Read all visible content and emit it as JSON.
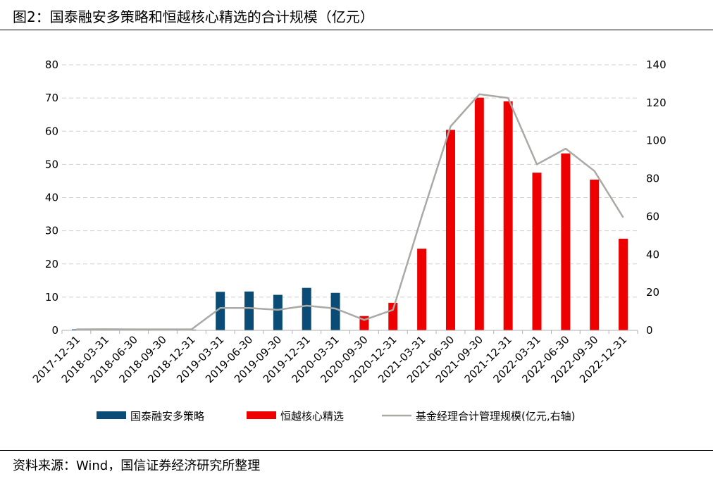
{
  "title": "图2：国泰融安多策略和恒越核心精选的合计规模（亿元）",
  "source": "资料来源：Wind，国信证券经济研究所整理",
  "colors": {
    "series1": "#0b4c77",
    "series2": "#ee0000",
    "series3": "#aaa9a5",
    "grid": "#d0d0d0"
  },
  "chart_data": {
    "type": "bar",
    "title": "图2：国泰融安多策略和恒越核心精选的合计规模（亿元）",
    "categories": [
      "2017-12-31",
      "2018-03-31",
      "2018-06-30",
      "2018-09-30",
      "2018-12-31",
      "2019-03-31",
      "2019-06-30",
      "2019-09-30",
      "2019-12-31",
      "2020-03-31",
      "2020-09-30",
      "2020-12-31",
      "2021-03-31",
      "2021-06-30",
      "2021-09-30",
      "2021-12-31",
      "2022-03-31",
      "2022-06-30",
      "2022-09-30",
      "2022-12-31"
    ],
    "y_left": {
      "lim": [
        0,
        80
      ],
      "ticks": [
        0,
        10,
        20,
        30,
        40,
        50,
        60,
        70,
        80
      ]
    },
    "y_right": {
      "lim": [
        0,
        140
      ],
      "ticks": [
        0,
        20,
        40,
        60,
        80,
        100,
        120,
        140
      ]
    },
    "grid": true,
    "legend_position": "bottom",
    "series": [
      {
        "name": "国泰融安多策略",
        "type": "bar",
        "axis": "left",
        "values": [
          0.3,
          0.3,
          0.3,
          0.2,
          0.2,
          11.6,
          11.7,
          10.7,
          12.8,
          11.3,
          0,
          0,
          0,
          0,
          0,
          0,
          0,
          0,
          0,
          0
        ]
      },
      {
        "name": "恒越核心精选",
        "type": "bar",
        "axis": "left",
        "values": [
          0,
          0,
          0,
          0,
          0,
          0,
          0,
          0,
          0,
          0,
          4.3,
          8.3,
          24.6,
          60.4,
          70.1,
          69.0,
          47.5,
          53.3,
          45.4,
          27.6
        ]
      },
      {
        "name": "基金经理合计管理规模(亿元,右轴)",
        "type": "line",
        "axis": "right",
        "values": [
          0.5,
          0.6,
          0.5,
          0.5,
          0.5,
          11.8,
          11.8,
          10.8,
          13.0,
          11.5,
          5.5,
          10.8,
          60.0,
          107.5,
          124.5,
          122.5,
          87.5,
          95.8,
          84.0,
          59.5
        ]
      }
    ]
  }
}
